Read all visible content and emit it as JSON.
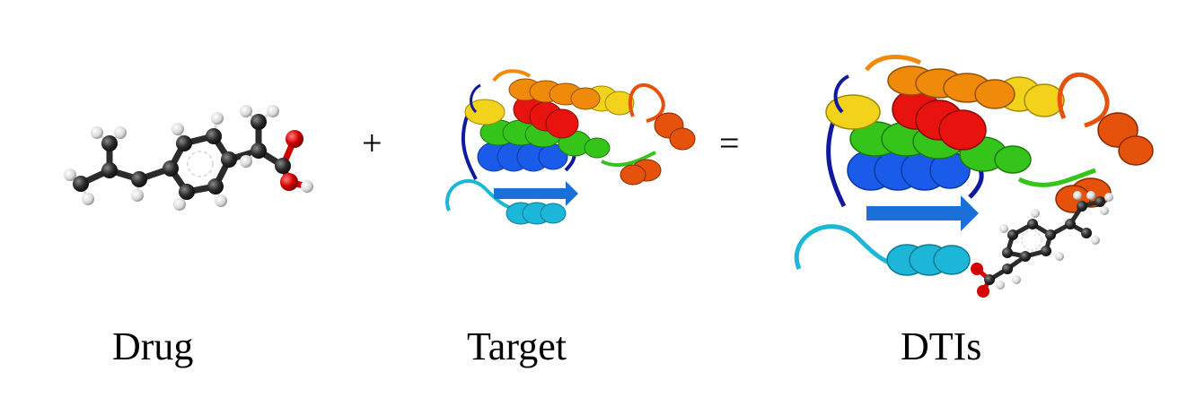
{
  "panels": {
    "drug": {
      "label": "Drug"
    },
    "target": {
      "label": "Target"
    },
    "result": {
      "label": "DTIs"
    }
  },
  "operators": {
    "plus": "+",
    "equals": "="
  },
  "colors": {
    "carbon": "#2b2b2b",
    "hydrogen": "#e6e6e6",
    "oxygen": "#d40000",
    "helix_red": "#e8120e",
    "helix_orange": "#f08a0a",
    "helix_yellow": "#f2d21a",
    "helix_green": "#35c41a",
    "helix_blue": "#1a5bea",
    "helix_cyan": "#1cb6d8",
    "loop_navy": "#101a9e",
    "helix_redorange": "#e4520c"
  }
}
